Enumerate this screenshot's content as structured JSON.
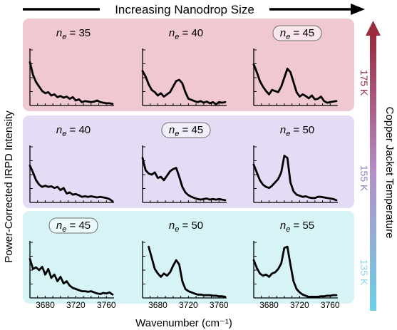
{
  "chart_data": {
    "type": "line",
    "header_label": "Increasing Nanodrop Size",
    "ylabel": "Power-Corrected IRPD Intensity",
    "xlabel": "Wavenumber (cm⁻¹)",
    "right_axis_label": "Copper Jacket Temperature",
    "xlim": [
      3660,
      3770
    ],
    "xticks": [
      3680,
      3720,
      3760
    ],
    "colors": {
      "row_bg": [
        "#efc8d2",
        "#e3dcf4",
        "#d6f3f6"
      ],
      "temp_text": [
        "#8a2b3c",
        "#8e84c2",
        "#8fd3e6"
      ],
      "arrow_top": "#9a2a3c",
      "arrow_mid": "#b48fc8",
      "arrow_bottom": "#6cd0e6",
      "trace": "#000000"
    },
    "rows": [
      {
        "temperature": "175 K",
        "panels": [
          {
            "ne_label": "35",
            "highlight": false,
            "x": [
              3660,
              3664,
              3668,
              3672,
              3676,
              3680,
              3684,
              3688,
              3692,
              3696,
              3700,
              3704,
              3708,
              3712,
              3716,
              3720,
              3724,
              3728,
              3732,
              3736,
              3740,
              3744,
              3748,
              3752,
              3756,
              3760,
              3764,
              3768
            ],
            "y": [
              0.78,
              0.55,
              0.42,
              0.34,
              0.26,
              0.22,
              0.24,
              0.18,
              0.2,
              0.15,
              0.17,
              0.14,
              0.16,
              0.12,
              0.15,
              0.09,
              0.11,
              0.06,
              0.08,
              0.07,
              0.06,
              0.07,
              0.09,
              0.06,
              0.05,
              0.04,
              0.04,
              0.03
            ]
          },
          {
            "ne_label": "40",
            "highlight": false,
            "x": [
              3660,
              3664,
              3668,
              3672,
              3676,
              3680,
              3684,
              3688,
              3692,
              3696,
              3700,
              3704,
              3708,
              3712,
              3716,
              3720,
              3724,
              3728,
              3732,
              3736,
              3740,
              3744,
              3748,
              3752,
              3756,
              3760,
              3764,
              3768
            ],
            "y": [
              0.62,
              0.52,
              0.38,
              0.28,
              0.24,
              0.18,
              0.22,
              0.16,
              0.2,
              0.24,
              0.34,
              0.44,
              0.46,
              0.4,
              0.24,
              0.12,
              0.1,
              0.08,
              0.06,
              0.08,
              0.05,
              0.07,
              0.04,
              0.06,
              0.02,
              0.06,
              0.05,
              0.06
            ]
          },
          {
            "ne_label": "45",
            "highlight": true,
            "x": [
              3660,
              3664,
              3668,
              3672,
              3676,
              3680,
              3684,
              3688,
              3692,
              3696,
              3700,
              3704,
              3708,
              3712,
              3716,
              3720,
              3724,
              3728,
              3732,
              3736,
              3740,
              3744,
              3748,
              3752,
              3756,
              3760,
              3764,
              3768
            ],
            "y": [
              0.74,
              0.6,
              0.44,
              0.34,
              0.26,
              0.2,
              0.28,
              0.26,
              0.24,
              0.34,
              0.5,
              0.66,
              0.6,
              0.42,
              0.24,
              0.16,
              0.2,
              0.17,
              0.13,
              0.18,
              0.11,
              0.12,
              0.16,
              0.08,
              0.05,
              0.06,
              0.07,
              0.08
            ]
          }
        ]
      },
      {
        "temperature": "155 K",
        "panels": [
          {
            "ne_label": "40",
            "highlight": false,
            "x": [
              3660,
              3664,
              3668,
              3672,
              3676,
              3680,
              3684,
              3688,
              3692,
              3696,
              3700,
              3704,
              3708,
              3712,
              3716,
              3720,
              3724,
              3728,
              3732,
              3736,
              3740,
              3744,
              3748,
              3752,
              3756,
              3760,
              3764,
              3768
            ],
            "y": [
              0.66,
              0.54,
              0.4,
              0.32,
              0.28,
              0.3,
              0.28,
              0.29,
              0.26,
              0.28,
              0.22,
              0.26,
              0.16,
              0.18,
              0.14,
              0.15,
              0.13,
              0.1,
              0.11,
              0.1,
              0.11,
              0.1,
              0.09,
              0.1,
              0.09,
              0.08,
              0.06,
              0.02
            ]
          },
          {
            "ne_label": "45",
            "highlight": true,
            "x": [
              3660,
              3664,
              3668,
              3672,
              3676,
              3680,
              3684,
              3688,
              3692,
              3696,
              3700,
              3704,
              3708,
              3712,
              3716,
              3720,
              3724,
              3728,
              3732,
              3736,
              3740,
              3744,
              3748,
              3752,
              3756,
              3760,
              3764,
              3768
            ],
            "y": [
              0.8,
              0.58,
              0.52,
              0.5,
              0.54,
              0.44,
              0.46,
              0.4,
              0.48,
              0.56,
              0.6,
              0.62,
              0.46,
              0.28,
              0.18,
              0.13,
              0.1,
              0.08,
              0.06,
              0.05,
              0.06,
              0.07,
              0.05,
              0.06,
              0.05,
              0.06,
              0.05,
              0.04
            ]
          },
          {
            "ne_label": "50",
            "highlight": false,
            "x": [
              3660,
              3664,
              3668,
              3672,
              3676,
              3680,
              3684,
              3688,
              3692,
              3696,
              3700,
              3704,
              3708,
              3712,
              3716,
              3720,
              3724,
              3728,
              3732,
              3736,
              3740,
              3744,
              3748,
              3752,
              3756,
              3760,
              3764,
              3768
            ],
            "y": [
              0.68,
              0.54,
              0.4,
              0.32,
              0.28,
              0.26,
              0.3,
              0.36,
              0.42,
              0.54,
              0.84,
              0.8,
              0.36,
              0.2,
              0.14,
              0.12,
              0.1,
              0.11,
              0.09,
              0.08,
              0.08,
              0.1,
              0.1,
              0.09,
              0.08,
              0.07,
              0.06,
              0.04
            ]
          }
        ]
      },
      {
        "temperature": "135 K",
        "panels": [
          {
            "ne_label": "45",
            "highlight": true,
            "x": [
              3660,
              3664,
              3668,
              3672,
              3676,
              3680,
              3684,
              3688,
              3692,
              3696,
              3700,
              3704,
              3708,
              3712,
              3716,
              3720,
              3724,
              3728,
              3732,
              3736,
              3740,
              3744,
              3748,
              3752,
              3756,
              3760,
              3764,
              3768
            ],
            "y": [
              0.7,
              0.52,
              0.55,
              0.5,
              0.56,
              0.42,
              0.52,
              0.36,
              0.42,
              0.3,
              0.38,
              0.26,
              0.3,
              0.22,
              0.18,
              0.16,
              0.14,
              0.12,
              0.12,
              0.11,
              0.12,
              0.1,
              0.08,
              0.07,
              0.09,
              0.08,
              0.1,
              0.06
            ]
          },
          {
            "ne_label": "50",
            "highlight": false,
            "x": [
              3668,
              3672,
              3676,
              3680,
              3684,
              3688,
              3692,
              3696,
              3700,
              3704,
              3708,
              3712,
              3716,
              3720,
              3724,
              3728,
              3732,
              3736,
              3740,
              3744,
              3748,
              3752,
              3756,
              3760,
              3764,
              3768
            ],
            "y": [
              0.92,
              0.72,
              0.52,
              0.44,
              0.38,
              0.44,
              0.4,
              0.46,
              0.58,
              0.68,
              0.6,
              0.3,
              0.16,
              0.12,
              0.1,
              0.08,
              0.06,
              0.06,
              0.05,
              0.05,
              0.05,
              0.04,
              0.04,
              0.03,
              0.03,
              0.02
            ]
          },
          {
            "ne_label": "55",
            "highlight": false,
            "x": [
              3660,
              3664,
              3668,
              3672,
              3676,
              3680,
              3684,
              3688,
              3692,
              3696,
              3700,
              3704,
              3708,
              3712,
              3716,
              3720,
              3724,
              3728,
              3732,
              3736,
              3740,
              3744,
              3748,
              3752,
              3756,
              3760,
              3764,
              3768
            ],
            "y": [
              0.68,
              0.54,
              0.44,
              0.4,
              0.42,
              0.38,
              0.44,
              0.46,
              0.52,
              0.62,
              0.9,
              0.92,
              0.6,
              0.3,
              0.16,
              0.1,
              0.06,
              0.04,
              0.02,
              0.02,
              0.02,
              0.02,
              0.03,
              0.03,
              0.04,
              0.04,
              0.05,
              0.05
            ]
          }
        ]
      }
    ]
  }
}
